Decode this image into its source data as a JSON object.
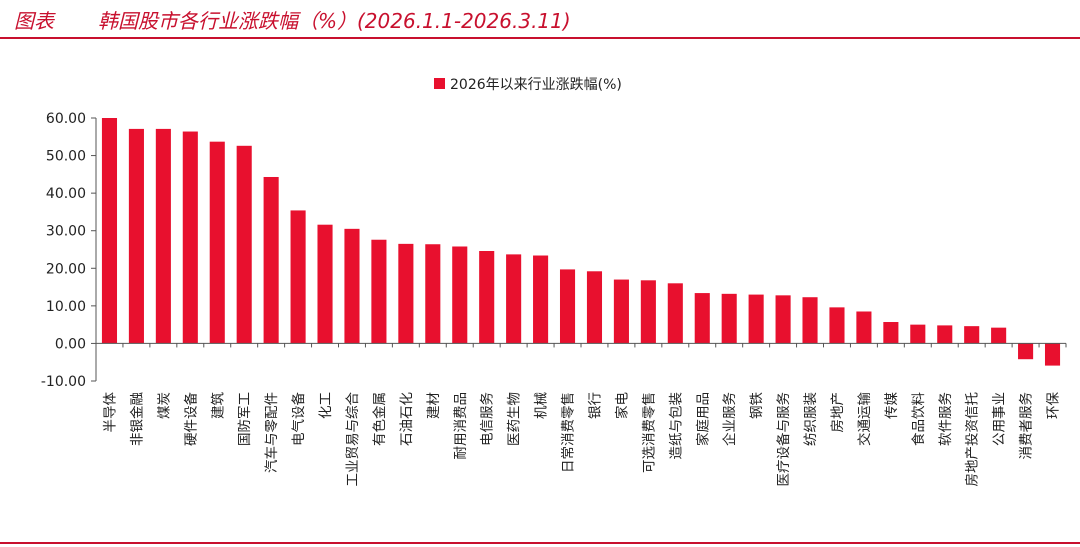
{
  "header": {
    "label": "图表",
    "title": "韩国股市各行业涨跌幅（%）(2026.1.1-2026.3.11)"
  },
  "colors": {
    "accent": "#c8102e",
    "bar": "#e8102e"
  },
  "chart_data": {
    "type": "bar",
    "title": "",
    "legend": {
      "label": "2026年以来行业涨跌幅(%)",
      "position": "top-center"
    },
    "xlabel": "",
    "ylabel": "",
    "ylim": [
      -10,
      60
    ],
    "yticks": [
      "60.00",
      "50.00",
      "40.00",
      "30.00",
      "20.00",
      "10.00",
      "0.00",
      "-10.00"
    ],
    "ytick_values": [
      60,
      50,
      40,
      30,
      20,
      10,
      0,
      -10
    ],
    "categories": [
      "半导体",
      "非银金融",
      "煤炭",
      "硬件设备",
      "建筑",
      "国防军工",
      "汽车与零配件",
      "电气设备",
      "化工",
      "工业贸易与综合",
      "有色金属",
      "石油石化",
      "建材",
      "耐用消费品",
      "电信服务",
      "医药生物",
      "机械",
      "日常消费零售",
      "银行",
      "家电",
      "可选消费零售",
      "造纸与包装",
      "家庭用品",
      "企业服务",
      "钢铁",
      "医疗设备与服务",
      "纺织服装",
      "房地产",
      "交通运输",
      "传媒",
      "食品饮料",
      "软件服务",
      "房地产投资信托",
      "公用事业",
      "消费者服务",
      "环保"
    ],
    "values": [
      60.0,
      57.1,
      57.1,
      56.4,
      53.7,
      52.6,
      44.3,
      35.4,
      31.6,
      30.5,
      27.6,
      26.5,
      26.4,
      25.8,
      24.6,
      23.7,
      23.4,
      19.7,
      19.2,
      17.0,
      16.8,
      16.0,
      13.4,
      13.2,
      13.0,
      12.8,
      12.3,
      9.6,
      8.5,
      5.7,
      5.0,
      4.8,
      4.6,
      4.2,
      -4.2,
      -5.9
    ]
  }
}
